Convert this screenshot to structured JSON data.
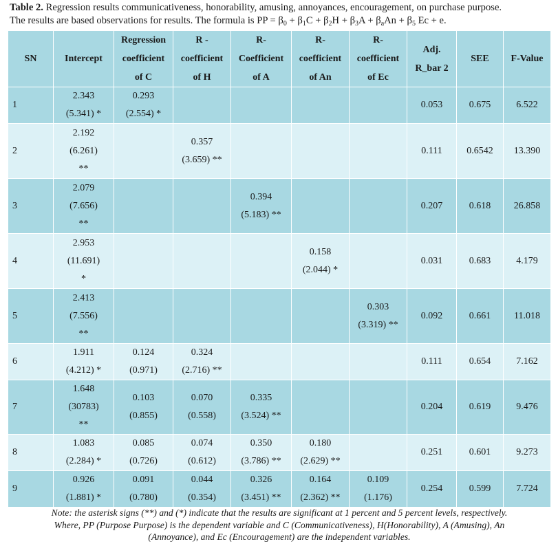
{
  "caption": {
    "label": "Table 2.",
    "text_line1": " Regression results communicativeness, honorability, amusing, annoyances, encouragement, on purchase purpose.",
    "text_line2": "The results are based observations for results. The formula is PP = β",
    "formula_parts": [
      "0",
      " + β",
      "1",
      "C + β",
      "2",
      "H + β",
      "3",
      "A + β",
      "a",
      "An + β",
      "5",
      " Ec + e."
    ]
  },
  "headers": [
    [
      "SN"
    ],
    [
      "Intercept"
    ],
    [
      "Regression",
      "coefficient",
      "of C"
    ],
    [
      "R -",
      "coefficient",
      "of H"
    ],
    [
      "R-",
      "Coefficient",
      "of A"
    ],
    [
      "R-",
      "coefficient",
      "of An"
    ],
    [
      "R-",
      "coefficient",
      "of Ec"
    ],
    [
      "Adj.",
      "R_bar 2"
    ],
    [
      "SEE"
    ],
    [
      "F-Value"
    ]
  ],
  "rows": [
    {
      "cells": [
        [
          "1"
        ],
        [
          "2.343",
          "(5.341) *"
        ],
        [
          "0.293",
          "(2.554) *"
        ],
        [],
        [],
        [],
        [],
        [
          "0.053"
        ],
        [
          "0.675"
        ],
        [
          "6.522"
        ]
      ]
    },
    {
      "cells": [
        [
          "2"
        ],
        [
          "2.192",
          "(6.261)",
          "**"
        ],
        [],
        [
          "0.357",
          "(3.659) **"
        ],
        [],
        [],
        [],
        [
          "0.111"
        ],
        [
          "0.6542"
        ],
        [
          "13.390"
        ]
      ]
    },
    {
      "cells": [
        [
          "3"
        ],
        [
          "2.079",
          "(7.656)",
          "**"
        ],
        [],
        [],
        [
          "0.394",
          "(5.183) **"
        ],
        [],
        [],
        [
          "0.207"
        ],
        [
          "0.618"
        ],
        [
          "26.858"
        ]
      ]
    },
    {
      "cells": [
        [
          "4"
        ],
        [
          "2.953",
          "(11.691)",
          "*"
        ],
        [],
        [],
        [],
        [
          "0.158",
          "(2.044) *"
        ],
        [],
        [
          "0.031"
        ],
        [
          "0.683"
        ],
        [
          "4.179"
        ]
      ]
    },
    {
      "cells": [
        [
          "5"
        ],
        [
          "2.413",
          "(7.556)",
          "**"
        ],
        [],
        [],
        [],
        [],
        [
          "0.303",
          "(3.319) **"
        ],
        [
          "0.092"
        ],
        [
          "0.661"
        ],
        [
          "11.018"
        ]
      ]
    },
    {
      "cells": [
        [
          "6"
        ],
        [
          "1.911",
          "(4.212) *"
        ],
        [
          "0.124",
          "(0.971)"
        ],
        [
          "0.324",
          "(2.716) **"
        ],
        [],
        [],
        [],
        [
          "0.111"
        ],
        [
          "0.654"
        ],
        [
          "7.162"
        ]
      ]
    },
    {
      "cells": [
        [
          "7"
        ],
        [
          "1.648",
          "(30783)",
          "**"
        ],
        [
          "0.103",
          "(0.855)"
        ],
        [
          "0.070",
          "(0.558)"
        ],
        [
          "0.335",
          "(3.524) **"
        ],
        [],
        [],
        [
          "0.204"
        ],
        [
          "0.619"
        ],
        [
          "9.476"
        ]
      ]
    },
    {
      "cells": [
        [
          "8"
        ],
        [
          "1.083",
          "(2.284) *"
        ],
        [
          "0.085",
          "(0.726)"
        ],
        [
          "0.074",
          "(0.612)"
        ],
        [
          "0.350",
          "(3.786) **"
        ],
        [
          "0.180",
          "(2.629) **"
        ],
        [],
        [
          "0.251"
        ],
        [
          "0.601"
        ],
        [
          "9.273"
        ]
      ]
    },
    {
      "cells": [
        [
          "9"
        ],
        [
          "0.926",
          "(1.881) *"
        ],
        [
          "0.091",
          "(0.780)"
        ],
        [
          "0.044",
          "(0.354)"
        ],
        [
          "0.326",
          "(3.451) **"
        ],
        [
          "0.164",
          "(2.362) **"
        ],
        [
          "0.109",
          "(1.176)"
        ],
        [
          "0.254"
        ],
        [
          "0.599"
        ],
        [
          "7.724"
        ]
      ]
    }
  ],
  "note": [
    "Note: the asterisk signs (**) and (*) indicate that the results are significant at 1 percent and 5 percent levels, respectively.",
    "Where, PP (Purpose Purpose) is the dependent variable and C (Communicativeness), H(Honorability), A (Amusing), An",
    "(Annoyance), and Ec (Encouragement) are the independent variables."
  ],
  "colors": {
    "header_bg": "#a8d8e2",
    "row_dark": "#a8d8e2",
    "row_light": "#dcf1f6",
    "border": "#ffffff"
  }
}
